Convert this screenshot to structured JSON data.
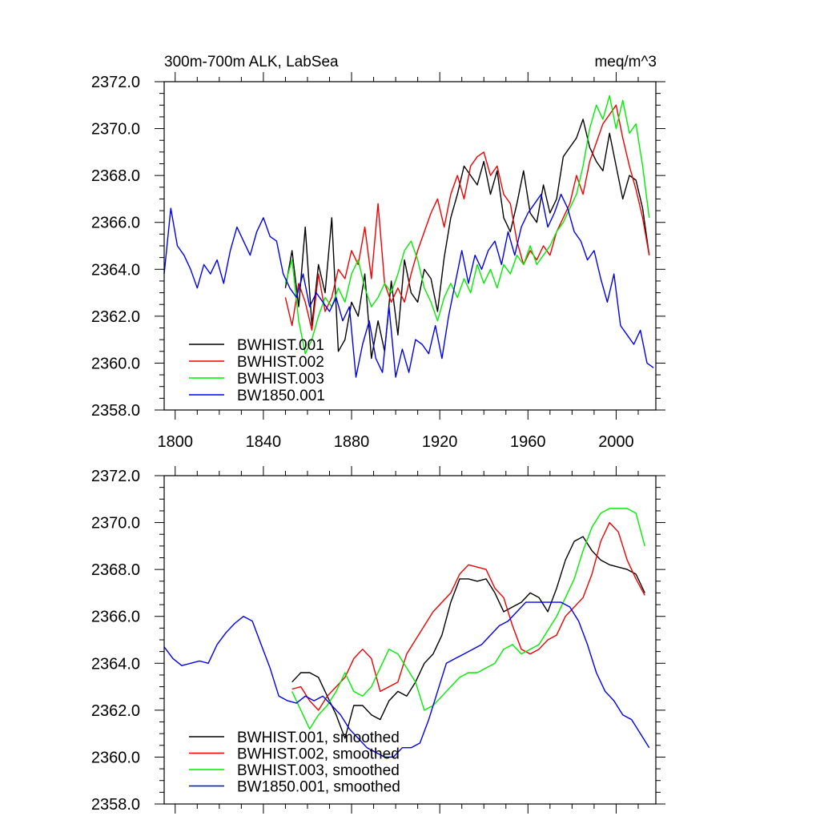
{
  "colors": {
    "black": "#000000",
    "red": "#ee0000",
    "green": "#00ee00",
    "blue": "#0000ee"
  },
  "chart_data": [
    {
      "type": "line",
      "title_left": "300m-700m ALK, LabSea",
      "title_right": "meq/m^3",
      "xlim": [
        1795,
        2018
      ],
      "ylim": [
        2358.0,
        2372.0
      ],
      "xticks": [
        1800,
        1840,
        1880,
        1920,
        1960,
        2000
      ],
      "xtick_labels": [
        "1800",
        "1840",
        "1880",
        "1920",
        "1960",
        "2000"
      ],
      "yticks": [
        2358.0,
        2360.0,
        2362.0,
        2364.0,
        2366.0,
        2368.0,
        2370.0,
        2372.0
      ],
      "ytick_labels": [
        "2358.0",
        "2360.0",
        "2362.0",
        "2364.0",
        "2366.0",
        "2368.0",
        "2370.0",
        "2372.0"
      ],
      "legend_position": "bottom-left",
      "series": [
        {
          "name": "BWHIST.001",
          "color": "#000000",
          "x": [
            1850,
            1853,
            1856,
            1859,
            1862,
            1865,
            1868,
            1871,
            1874,
            1877,
            1880,
            1883,
            1886,
            1889,
            1892,
            1895,
            1898,
            1901,
            1904,
            1907,
            1910,
            1913,
            1916,
            1919,
            1922,
            1925,
            1928,
            1931,
            1934,
            1937,
            1940,
            1943,
            1946,
            1949,
            1952,
            1955,
            1958,
            1961,
            1964,
            1967,
            1970,
            1973,
            1976,
            1979,
            1982,
            1985,
            1988,
            1991,
            1994,
            1997,
            2000,
            2003,
            2006,
            2009,
            2012,
            2015
          ],
          "y": [
            2363.2,
            2364.8,
            2362.4,
            2365.8,
            2361.6,
            2364.2,
            2363.0,
            2366.2,
            2360.5,
            2361.0,
            2362.6,
            2362.0,
            2363.8,
            2360.2,
            2361.8,
            2360.5,
            2363.5,
            2361.2,
            2364.4,
            2363.0,
            2362.6,
            2364.0,
            2363.6,
            2362.2,
            2364.5,
            2366.2,
            2367.2,
            2368.4,
            2368.0,
            2367.6,
            2368.6,
            2367.2,
            2368.2,
            2366.2,
            2365.6,
            2366.8,
            2368.2,
            2366.4,
            2366.0,
            2367.6,
            2366.4,
            2367.0,
            2368.8,
            2369.2,
            2369.6,
            2370.4,
            2369.2,
            2368.6,
            2368.2,
            2369.8,
            2368.4,
            2367.0,
            2368.0,
            2367.8,
            2366.6,
            2364.6
          ]
        },
        {
          "name": "BWHIST.002",
          "color": "#ee0000",
          "x": [
            1850,
            1853,
            1856,
            1859,
            1862,
            1865,
            1868,
            1871,
            1874,
            1877,
            1880,
            1883,
            1886,
            1889,
            1892,
            1895,
            1898,
            1901,
            1904,
            1907,
            1910,
            1913,
            1916,
            1919,
            1922,
            1925,
            1928,
            1931,
            1934,
            1937,
            1940,
            1943,
            1946,
            1949,
            1952,
            1955,
            1958,
            1961,
            1964,
            1967,
            1970,
            1973,
            1976,
            1979,
            1982,
            1985,
            1988,
            1991,
            1994,
            1997,
            2000,
            2003,
            2006,
            2009,
            2012,
            2015
          ],
          "y": [
            2362.8,
            2361.6,
            2363.4,
            2362.6,
            2361.4,
            2363.8,
            2362.2,
            2362.8,
            2364.0,
            2363.6,
            2364.8,
            2364.2,
            2365.8,
            2363.6,
            2366.8,
            2363.4,
            2362.6,
            2363.2,
            2362.6,
            2363.8,
            2364.8,
            2365.6,
            2366.4,
            2367.0,
            2365.8,
            2367.2,
            2368.0,
            2367.0,
            2368.4,
            2368.8,
            2369.0,
            2368.0,
            2368.4,
            2367.2,
            2366.8,
            2365.2,
            2364.2,
            2364.8,
            2364.4,
            2365.0,
            2364.6,
            2365.6,
            2366.2,
            2366.8,
            2368.0,
            2367.2,
            2368.6,
            2369.4,
            2370.2,
            2370.6,
            2371.0,
            2369.6,
            2368.4,
            2367.4,
            2366.2,
            2364.6
          ]
        },
        {
          "name": "BWHIST.003",
          "color": "#00ee00",
          "x": [
            1850,
            1853,
            1856,
            1859,
            1862,
            1865,
            1868,
            1871,
            1874,
            1877,
            1880,
            1883,
            1886,
            1889,
            1892,
            1895,
            1898,
            1901,
            1904,
            1907,
            1910,
            1913,
            1916,
            1919,
            1922,
            1925,
            1928,
            1931,
            1934,
            1937,
            1940,
            1943,
            1946,
            1949,
            1952,
            1955,
            1958,
            1961,
            1964,
            1967,
            1970,
            1973,
            1976,
            1979,
            1982,
            1985,
            1988,
            1991,
            1994,
            1997,
            2000,
            2003,
            2006,
            2009,
            2012,
            2015
          ],
          "y": [
            2363.4,
            2364.4,
            2361.8,
            2360.4,
            2361.0,
            2362.0,
            2362.8,
            2362.4,
            2363.2,
            2362.6,
            2363.8,
            2364.4,
            2363.2,
            2362.4,
            2362.8,
            2363.4,
            2363.0,
            2363.8,
            2364.8,
            2365.2,
            2364.4,
            2363.2,
            2362.6,
            2361.8,
            2362.8,
            2363.4,
            2362.8,
            2363.6,
            2363.0,
            2364.2,
            2363.4,
            2364.0,
            2363.2,
            2364.2,
            2363.8,
            2364.6,
            2364.2,
            2365.0,
            2364.2,
            2364.6,
            2365.0,
            2365.6,
            2366.0,
            2366.6,
            2367.2,
            2368.4,
            2370.0,
            2371.0,
            2370.4,
            2371.4,
            2370.0,
            2371.2,
            2369.8,
            2370.2,
            2368.4,
            2366.2
          ]
        },
        {
          "name": "BW1850.001",
          "color": "#0000ee",
          "x": [
            1795,
            1798,
            1801,
            1804,
            1807,
            1810,
            1813,
            1816,
            1819,
            1822,
            1825,
            1828,
            1831,
            1834,
            1837,
            1840,
            1843,
            1846,
            1849,
            1852,
            1855,
            1858,
            1861,
            1864,
            1867,
            1870,
            1873,
            1876,
            1879,
            1882,
            1885,
            1888,
            1891,
            1894,
            1897,
            1900,
            1903,
            1906,
            1909,
            1912,
            1915,
            1918,
            1921,
            1924,
            1927,
            1930,
            1933,
            1936,
            1939,
            1942,
            1945,
            1948,
            1951,
            1954,
            1957,
            1960,
            1963,
            1966,
            1969,
            1972,
            1975,
            1978,
            1981,
            1984,
            1987,
            1990,
            1993,
            1996,
            1999,
            2002,
            2005,
            2008,
            2011,
            2014,
            2017
          ],
          "y": [
            2363.8,
            2366.6,
            2365.0,
            2364.6,
            2364.0,
            2363.2,
            2364.2,
            2363.8,
            2364.4,
            2363.4,
            2364.8,
            2365.8,
            2365.2,
            2364.6,
            2365.6,
            2366.2,
            2365.4,
            2365.2,
            2363.8,
            2363.2,
            2362.8,
            2363.8,
            2362.4,
            2363.0,
            2362.6,
            2362.2,
            2362.8,
            2361.8,
            2362.4,
            2359.4,
            2360.8,
            2361.8,
            2360.2,
            2359.6,
            2362.4,
            2359.4,
            2360.6,
            2359.6,
            2361.0,
            2360.8,
            2360.4,
            2361.6,
            2360.2,
            2362.0,
            2363.4,
            2364.8,
            2363.4,
            2364.6,
            2364.0,
            2364.8,
            2365.2,
            2364.2,
            2365.6,
            2364.6,
            2365.8,
            2366.4,
            2366.8,
            2367.2,
            2365.8,
            2366.4,
            2367.2,
            2366.6,
            2365.6,
            2365.2,
            2364.4,
            2364.8,
            2363.6,
            2362.6,
            2363.8,
            2361.6,
            2361.2,
            2360.8,
            2361.4,
            2360.0,
            2359.8
          ]
        }
      ]
    },
    {
      "type": "line",
      "xlim": [
        1795,
        2018
      ],
      "ylim": [
        2358.0,
        2372.0
      ],
      "xticks": [
        1800,
        1840,
        1880,
        1920,
        1960,
        2000
      ],
      "yticks": [
        2358.0,
        2360.0,
        2362.0,
        2364.0,
        2366.0,
        2368.0,
        2370.0,
        2372.0
      ],
      "ytick_labels": [
        "2358.0",
        "2360.0",
        "2362.0",
        "2364.0",
        "2366.0",
        "2368.0",
        "2370.0",
        "2372.0"
      ],
      "legend_position": "bottom-left",
      "series": [
        {
          "name": "BWHIST.001, smoothed",
          "color": "#000000",
          "x": [
            1853,
            1857,
            1861,
            1865,
            1869,
            1873,
            1877,
            1881,
            1885,
            1889,
            1893,
            1897,
            1901,
            1905,
            1909,
            1913,
            1917,
            1921,
            1925,
            1929,
            1933,
            1937,
            1941,
            1945,
            1949,
            1953,
            1957,
            1961,
            1965,
            1969,
            1973,
            1977,
            1981,
            1985,
            1989,
            1993,
            1997,
            2001,
            2005,
            2009,
            2013
          ],
          "y": [
            2363.2,
            2363.6,
            2363.6,
            2363.4,
            2362.6,
            2361.8,
            2360.8,
            2362.2,
            2362.2,
            2361.8,
            2361.6,
            2362.4,
            2362.8,
            2362.6,
            2363.2,
            2364.0,
            2364.4,
            2365.2,
            2366.6,
            2367.6,
            2367.6,
            2367.5,
            2367.6,
            2367.0,
            2366.2,
            2366.4,
            2366.6,
            2367.0,
            2366.8,
            2366.2,
            2367.2,
            2368.4,
            2369.2,
            2369.4,
            2368.8,
            2368.4,
            2368.2,
            2368.1,
            2368.0,
            2367.8,
            2367.0
          ]
        },
        {
          "name": "BWHIST.002, smoothed",
          "color": "#ee0000",
          "x": [
            1853,
            1857,
            1861,
            1865,
            1869,
            1873,
            1877,
            1881,
            1885,
            1889,
            1893,
            1897,
            1901,
            1905,
            1909,
            1913,
            1917,
            1921,
            1925,
            1929,
            1933,
            1937,
            1941,
            1945,
            1949,
            1953,
            1957,
            1961,
            1965,
            1969,
            1973,
            1977,
            1981,
            1985,
            1989,
            1993,
            1997,
            2001,
            2005,
            2009,
            2013
          ],
          "y": [
            2362.9,
            2363.0,
            2362.4,
            2362.0,
            2362.6,
            2363.0,
            2363.4,
            2364.2,
            2364.6,
            2364.2,
            2362.8,
            2363.0,
            2363.2,
            2364.4,
            2365.0,
            2365.6,
            2366.2,
            2366.6,
            2367.0,
            2367.8,
            2368.2,
            2368.1,
            2368.0,
            2367.2,
            2366.8,
            2365.6,
            2364.6,
            2364.4,
            2364.6,
            2365.0,
            2365.2,
            2366.0,
            2366.4,
            2366.8,
            2367.8,
            2369.2,
            2370.0,
            2369.6,
            2368.4,
            2367.6,
            2366.9
          ]
        },
        {
          "name": "BWHIST.003, smoothed",
          "color": "#00ee00",
          "x": [
            1853,
            1857,
            1861,
            1865,
            1869,
            1873,
            1877,
            1881,
            1885,
            1889,
            1893,
            1897,
            1901,
            1905,
            1909,
            1913,
            1917,
            1921,
            1925,
            1929,
            1933,
            1937,
            1941,
            1945,
            1949,
            1953,
            1957,
            1961,
            1965,
            1969,
            1973,
            1977,
            1981,
            1985,
            1989,
            1993,
            1997,
            2001,
            2005,
            2009,
            2013
          ],
          "y": [
            2362.8,
            2362.0,
            2361.2,
            2361.8,
            2362.2,
            2362.8,
            2363.6,
            2362.8,
            2362.6,
            2363.0,
            2363.8,
            2364.6,
            2364.4,
            2363.8,
            2363.2,
            2362.0,
            2362.2,
            2362.6,
            2363.0,
            2363.4,
            2363.6,
            2363.6,
            2363.8,
            2364.0,
            2364.6,
            2364.8,
            2364.4,
            2364.6,
            2364.8,
            2365.4,
            2366.0,
            2366.8,
            2367.6,
            2368.8,
            2369.8,
            2370.4,
            2370.6,
            2370.6,
            2370.6,
            2370.4,
            2369.0
          ]
        },
        {
          "name": "BW1850.001, smoothed",
          "color": "#0000ee",
          "x": [
            1795,
            1799,
            1803,
            1807,
            1811,
            1815,
            1819,
            1823,
            1827,
            1831,
            1835,
            1839,
            1843,
            1847,
            1851,
            1855,
            1859,
            1863,
            1867,
            1871,
            1875,
            1879,
            1883,
            1887,
            1891,
            1895,
            1899,
            1903,
            1907,
            1911,
            1915,
            1919,
            1923,
            1927,
            1931,
            1935,
            1939,
            1943,
            1947,
            1951,
            1955,
            1959,
            1963,
            1967,
            1971,
            1975,
            1979,
            1983,
            1987,
            1991,
            1995,
            1999,
            2003,
            2007,
            2011,
            2015
          ],
          "y": [
            2364.7,
            2364.2,
            2363.9,
            2364.0,
            2364.1,
            2364.0,
            2364.8,
            2365.3,
            2365.7,
            2366.0,
            2365.8,
            2364.8,
            2363.8,
            2362.6,
            2362.4,
            2362.3,
            2362.6,
            2362.4,
            2362.6,
            2362.2,
            2361.8,
            2361.2,
            2360.8,
            2360.4,
            2360.2,
            2360.0,
            2360.0,
            2360.4,
            2360.4,
            2360.6,
            2361.6,
            2362.8,
            2364.0,
            2364.2,
            2364.4,
            2364.6,
            2364.8,
            2365.2,
            2365.6,
            2365.8,
            2366.2,
            2366.6,
            2366.6,
            2366.6,
            2366.6,
            2366.6,
            2366.4,
            2365.8,
            2364.8,
            2363.6,
            2362.8,
            2362.4,
            2361.8,
            2361.6,
            2361.0,
            2360.4
          ]
        }
      ]
    }
  ]
}
